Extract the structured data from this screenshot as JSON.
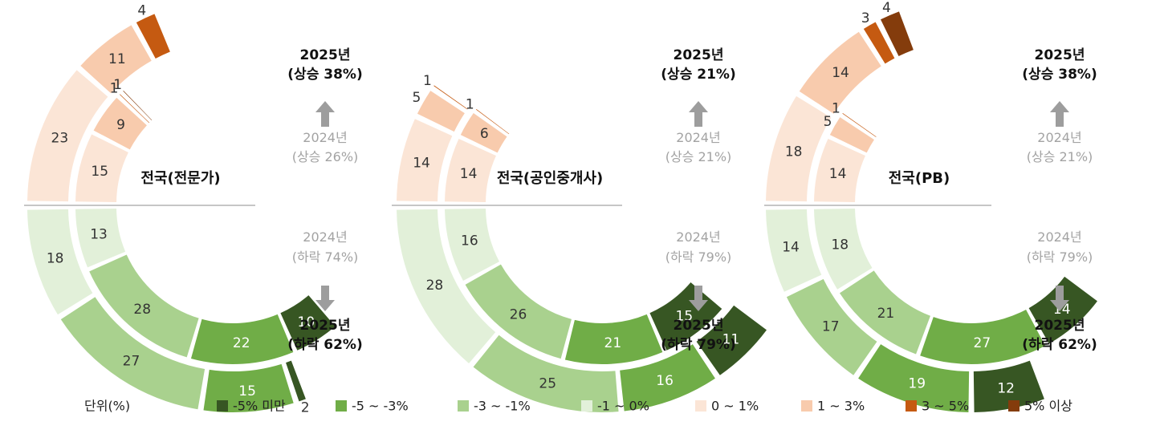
{
  "colors": {
    "lt-5": "#375623",
    "m5_m3": "#70ad47",
    "m3_m1": "#a9d18e",
    "m1_0": "#e2f0d9",
    "p0_1": "#fbe5d6",
    "p1_3": "#f8cbad",
    "p3_5": "#c55a11",
    "gt5": "#843c0c"
  },
  "unit_label": "단위(%)",
  "legend": [
    {
      "key": "lt-5",
      "label": "-5% 미만"
    },
    {
      "key": "m5_m3",
      "label": "-5 ~ -3%"
    },
    {
      "key": "m3_m1",
      "label": "-3 ~ -1%"
    },
    {
      "key": "m1_0",
      "label": "-1 ~ 0%"
    },
    {
      "key": "p0_1",
      "label": "0 ~ 1%"
    },
    {
      "key": "p1_3",
      "label": "1 ~ 3%"
    },
    {
      "key": "p3_5",
      "label": "3 ~ 5%"
    },
    {
      "key": "gt5",
      "label": "5% 이상"
    }
  ],
  "chart_data": [
    {
      "type": "donut",
      "title": "전국(전문가)",
      "rising": {
        "outer_2025": [
          {
            "key": "p0_1",
            "value": 23
          },
          {
            "key": "p1_3",
            "value": 11
          },
          {
            "key": "p3_5",
            "value": 4
          },
          {
            "key": "gt5",
            "value": 0
          }
        ],
        "inner_2024": [
          {
            "key": "p0_1",
            "value": 15
          },
          {
            "key": "p1_3",
            "value": 9
          },
          {
            "key": "p3_5",
            "value": 1
          },
          {
            "key": "gt5",
            "value": 1
          }
        ]
      },
      "falling": {
        "outer_2025": [
          {
            "key": "m1_0",
            "value": 18
          },
          {
            "key": "m3_m1",
            "value": 27
          },
          {
            "key": "m5_m3",
            "value": 15
          },
          {
            "key": "lt-5",
            "value": 2
          }
        ],
        "inner_2024": [
          {
            "key": "m1_0",
            "value": 13
          },
          {
            "key": "m3_m1",
            "value": 28
          },
          {
            "key": "m5_m3",
            "value": 22
          },
          {
            "key": "lt-5",
            "value": 10
          }
        ]
      },
      "rise_2025": {
        "year": "2025년",
        "text": "(상승 38%)"
      },
      "rise_2024": {
        "year": "2024년",
        "text": "(상승 26%)"
      },
      "fall_2024": {
        "year": "2024년",
        "text": "(하락 74%)"
      },
      "fall_2025": {
        "year": "2025년",
        "text": "(하락 62%)"
      }
    },
    {
      "type": "donut",
      "title": "전국(공인중개사)",
      "rising": {
        "outer_2025": [
          {
            "key": "p0_1",
            "value": 14
          },
          {
            "key": "p1_3",
            "value": 5
          },
          {
            "key": "p3_5",
            "value": 1
          },
          {
            "key": "gt5",
            "value": 0
          }
        ],
        "inner_2024": [
          {
            "key": "p0_1",
            "value": 14
          },
          {
            "key": "p1_3",
            "value": 6
          },
          {
            "key": "p3_5",
            "value": 1
          },
          {
            "key": "gt5",
            "value": 0
          }
        ]
      },
      "falling": {
        "outer_2025": [
          {
            "key": "m1_0",
            "value": 28
          },
          {
            "key": "m3_m1",
            "value": 25
          },
          {
            "key": "m5_m3",
            "value": 16
          },
          {
            "key": "lt-5",
            "value": 11
          }
        ],
        "inner_2024": [
          {
            "key": "m1_0",
            "value": 16
          },
          {
            "key": "m3_m1",
            "value": 26
          },
          {
            "key": "m5_m3",
            "value": 21
          },
          {
            "key": "lt-5",
            "value": 15
          }
        ]
      },
      "rise_2025": {
        "year": "2025년",
        "text": "(상승 21%)"
      },
      "rise_2024": {
        "year": "2024년",
        "text": "(상승 21%)"
      },
      "fall_2024": {
        "year": "2024년",
        "text": "(하락 79%)"
      },
      "fall_2025": {
        "year": "2025년",
        "text": "(하락 79%)"
      }
    },
    {
      "type": "donut",
      "title": "전국(PB)",
      "rising": {
        "outer_2025": [
          {
            "key": "p0_1",
            "value": 18
          },
          {
            "key": "p1_3",
            "value": 14
          },
          {
            "key": "p3_5",
            "value": 3
          },
          {
            "key": "gt5",
            "value": 4
          }
        ],
        "inner_2024": [
          {
            "key": "p0_1",
            "value": 14
          },
          {
            "key": "p1_3",
            "value": 5
          },
          {
            "key": "p3_5",
            "value": 1
          },
          {
            "key": "gt5",
            "value": 0
          }
        ]
      },
      "falling": {
        "outer_2025": [
          {
            "key": "m1_0",
            "value": 14
          },
          {
            "key": "m3_m1",
            "value": 17
          },
          {
            "key": "m5_m3",
            "value": 19
          },
          {
            "key": "lt-5",
            "value": 12
          }
        ],
        "inner_2024": [
          {
            "key": "m1_0",
            "value": 18
          },
          {
            "key": "m3_m1",
            "value": 21
          },
          {
            "key": "m5_m3",
            "value": 27
          },
          {
            "key": "lt-5",
            "value": 14
          }
        ]
      },
      "rise_2025": {
        "year": "2025년",
        "text": "(상승 38%)"
      },
      "rise_2024": {
        "year": "2024년",
        "text": "(상승 21%)"
      },
      "fall_2024": {
        "year": "2024년",
        "text": "(하락 79%)"
      },
      "fall_2025": {
        "year": "2025년",
        "text": "(하락 62%)"
      }
    }
  ]
}
